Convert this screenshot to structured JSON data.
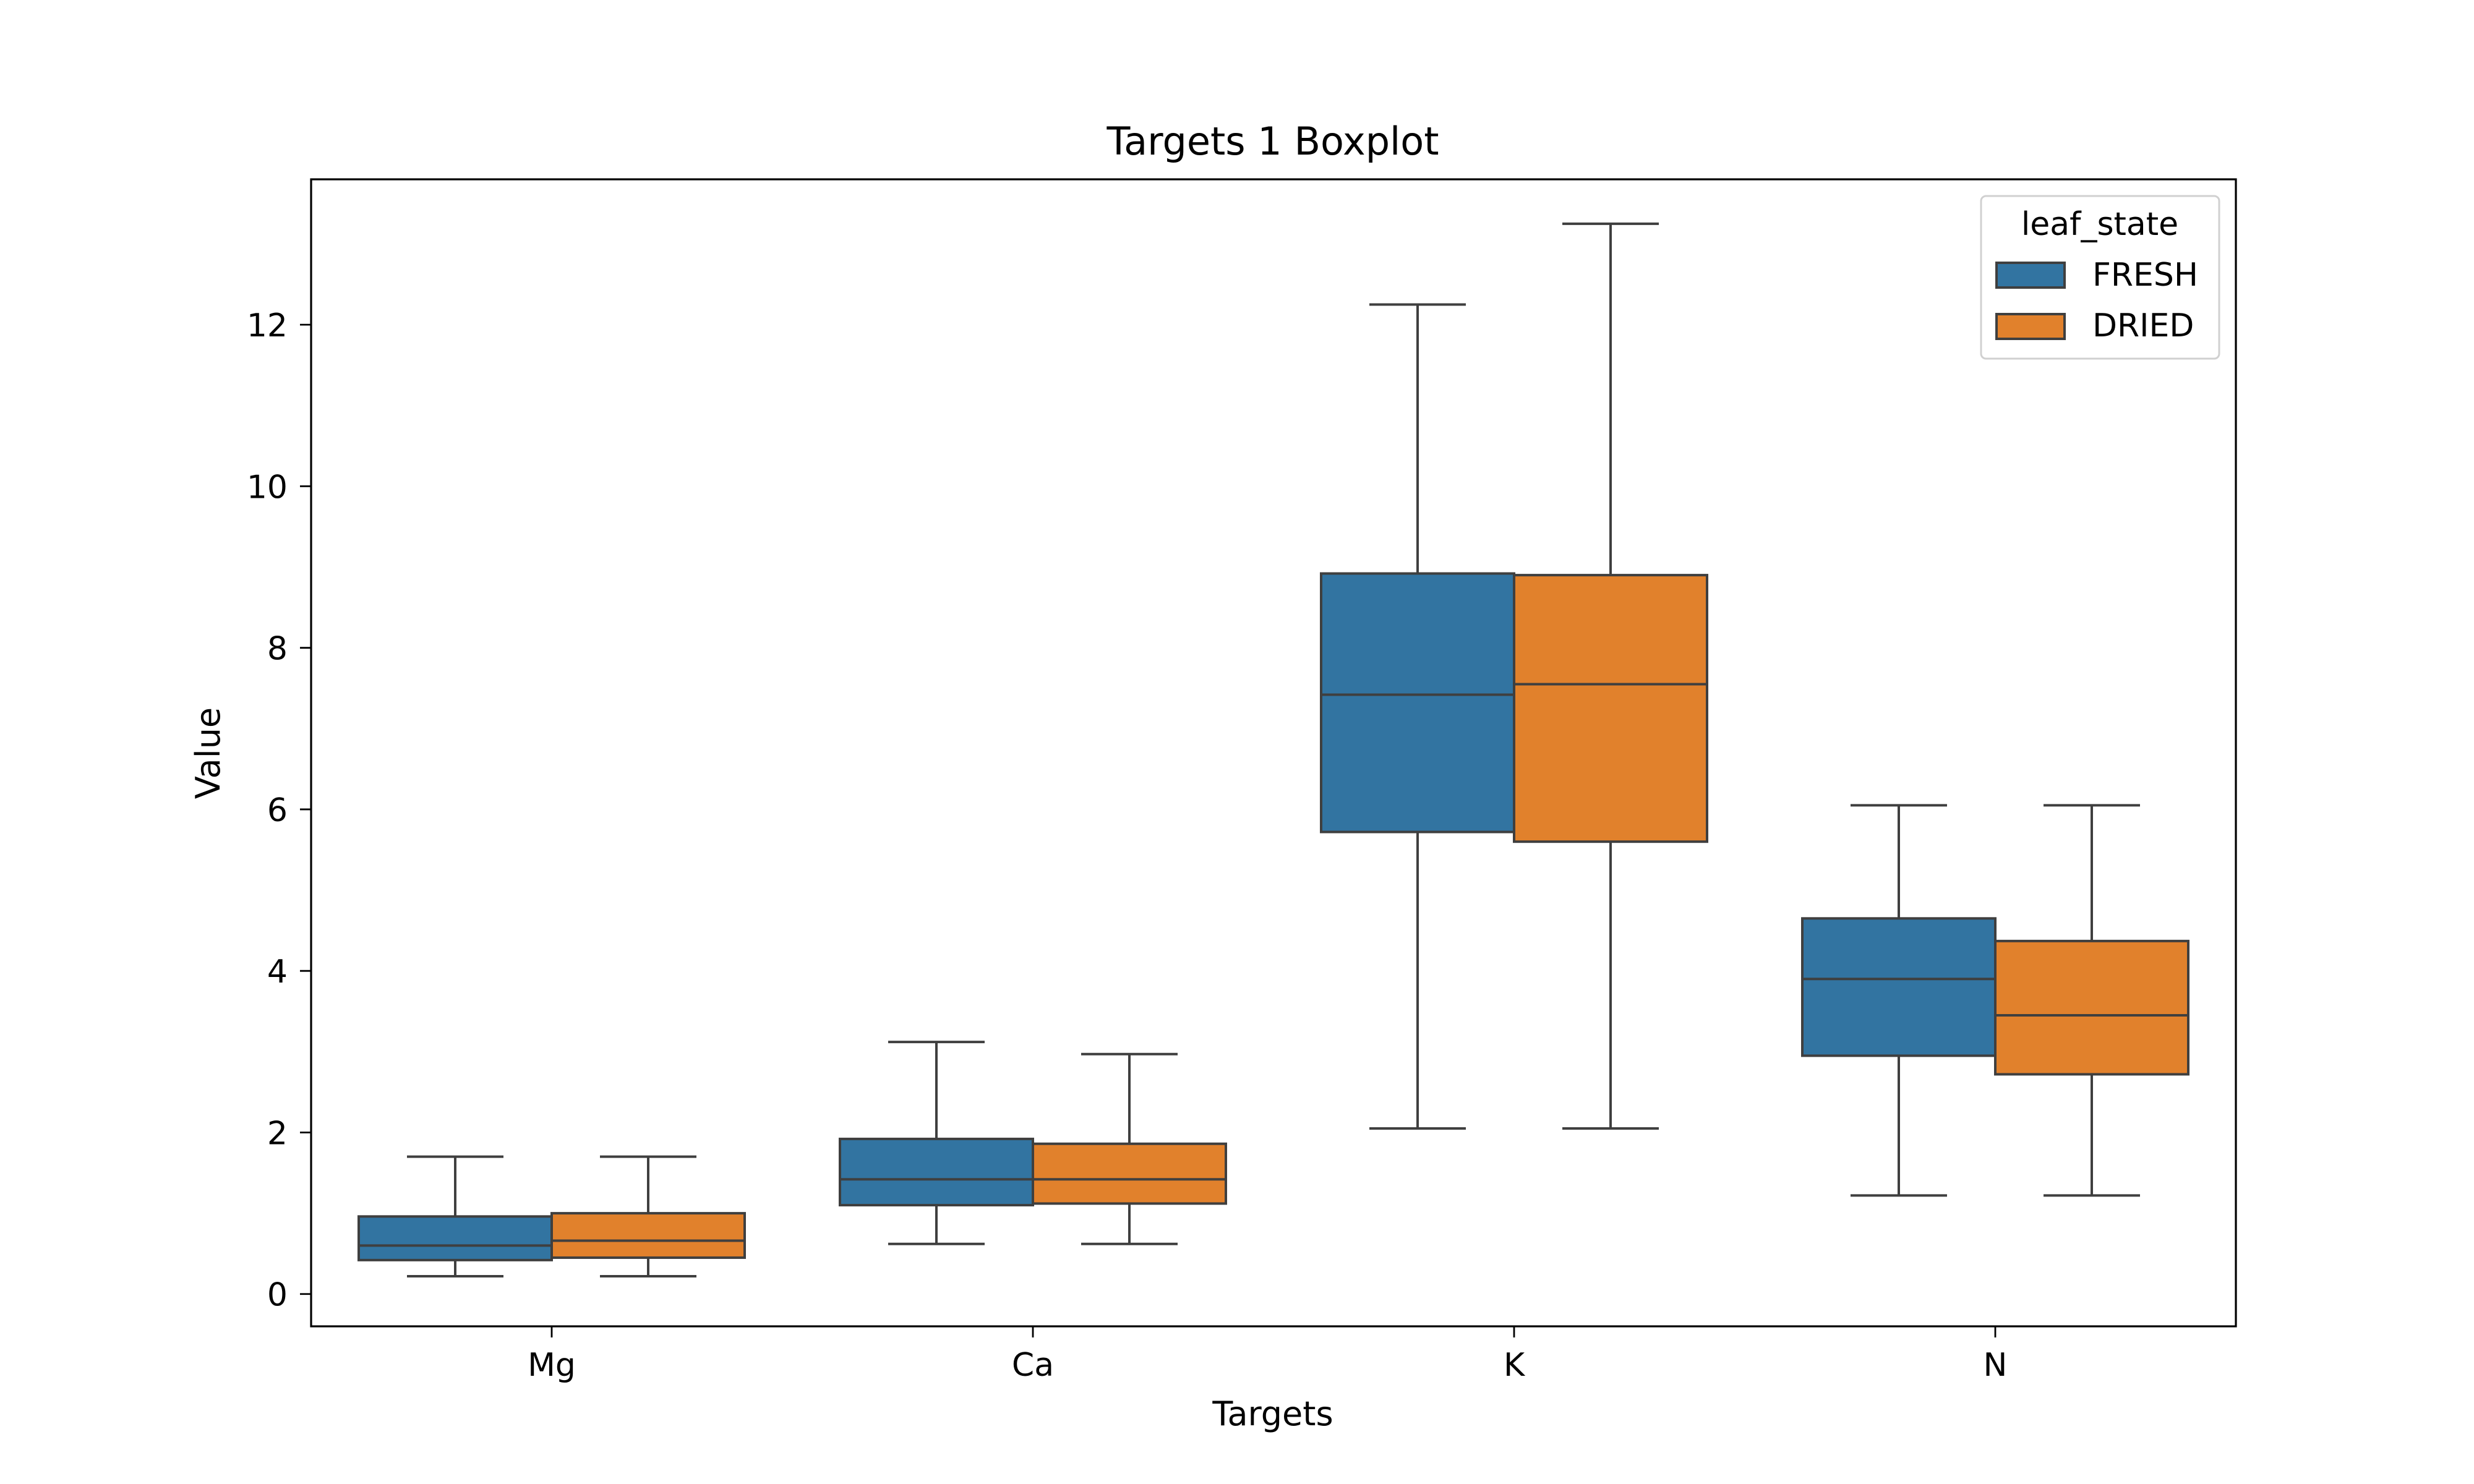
{
  "chart_data": {
    "type": "boxplot",
    "title": "Targets 1 Boxplot",
    "xlabel": "Targets",
    "ylabel": "Value",
    "ylim": [
      -0.4,
      13.8
    ],
    "yticks": [
      0,
      2,
      4,
      6,
      8,
      10,
      12
    ],
    "categories": [
      "Mg",
      "Ca",
      "K",
      "N"
    ],
    "legend": {
      "title": "leaf_state",
      "placement": "top-right"
    },
    "series": [
      {
        "name": "FRESH",
        "color": "#3274a1",
        "boxes": [
          {
            "min": 0.22,
            "q1": 0.42,
            "median": 0.6,
            "q3": 0.96,
            "max": 1.7
          },
          {
            "min": 0.62,
            "q1": 1.1,
            "median": 1.42,
            "q3": 1.92,
            "max": 3.12
          },
          {
            "min": 2.05,
            "q1": 5.72,
            "median": 7.42,
            "q3": 8.92,
            "max": 12.25
          },
          {
            "min": 1.22,
            "q1": 2.95,
            "median": 3.9,
            "q3": 4.65,
            "max": 6.05
          }
        ]
      },
      {
        "name": "DRIED",
        "color": "#e1812c",
        "boxes": [
          {
            "min": 0.22,
            "q1": 0.45,
            "median": 0.66,
            "q3": 1.0,
            "max": 1.7
          },
          {
            "min": 0.62,
            "q1": 1.12,
            "median": 1.42,
            "q3": 1.86,
            "max": 2.97
          },
          {
            "min": 2.05,
            "q1": 5.6,
            "median": 7.55,
            "q3": 8.9,
            "max": 13.25
          },
          {
            "min": 1.22,
            "q1": 2.72,
            "median": 3.45,
            "q3": 4.37,
            "max": 6.05
          }
        ]
      }
    ]
  }
}
